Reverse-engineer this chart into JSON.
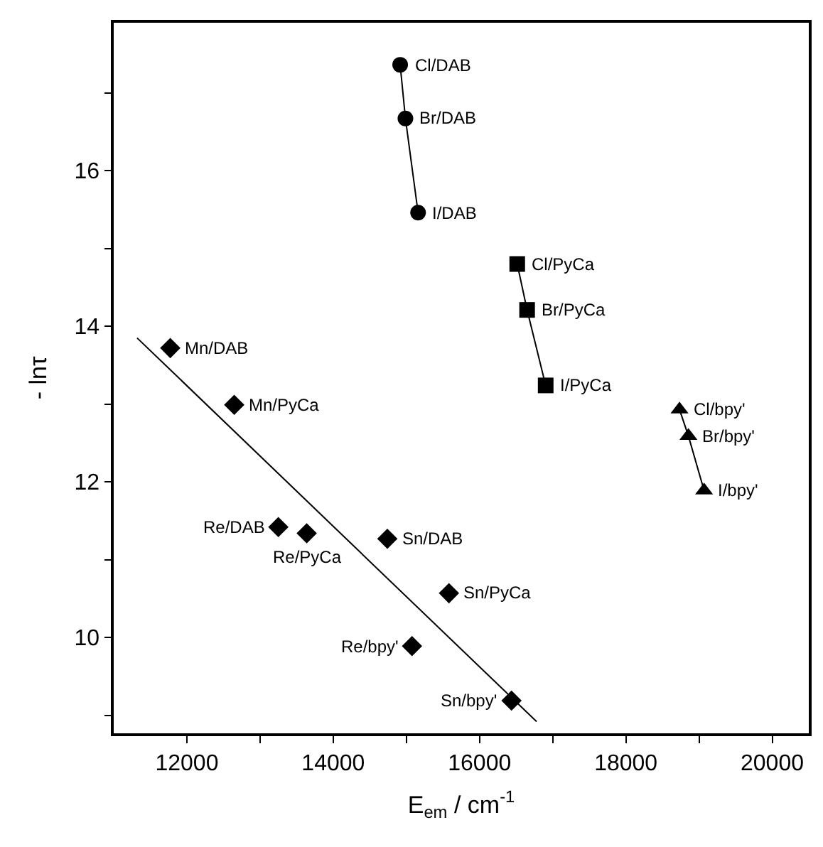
{
  "chart_data": {
    "type": "scatter",
    "xlabel": "E$_{em}$ / cm$^{-1}$",
    "ylabel": "- lnτ",
    "xlim": [
      11000,
      20500
    ],
    "ylim": [
      8.77,
      17.9
    ],
    "xticks": [
      12000,
      {
        "value": 13000,
        "label": null
      },
      14000,
      {
        "value": 15000,
        "label": null
      },
      16000,
      {
        "value": 17000,
        "label": null
      },
      18000,
      {
        "value": 19000,
        "label": null
      },
      20000
    ],
    "yticks": [
      {
        "value": 9,
        "label": null
      },
      10,
      {
        "value": 11,
        "label": null
      },
      12,
      {
        "value": 13,
        "label": null
      },
      14,
      {
        "value": 15,
        "label": null
      },
      16,
      {
        "value": 17,
        "label": null
      }
    ],
    "series": [
      {
        "type": "line",
        "marker": "circle",
        "color": "#000000",
        "x": [
          14915,
          14987,
          15160
        ],
        "values": [
          17.36,
          16.67,
          15.46
        ]
      },
      {
        "type": "line",
        "marker": "square",
        "color": "#000000",
        "x": [
          16515,
          16650,
          16904
        ],
        "values": [
          14.8,
          14.21,
          13.24
        ]
      },
      {
        "type": "line",
        "marker": "triangle",
        "color": "#000000",
        "x": [
          18733,
          18855,
          19069
        ],
        "values": [
          12.93,
          12.59,
          11.89
        ]
      },
      {
        "marker": "diamond",
        "color": "#000000",
        "x": [
          11773,
          12647,
          13250,
          13638,
          14740,
          15582,
          15077,
          16437
        ],
        "values": [
          13.72,
          12.99,
          11.42,
          11.34,
          11.27,
          10.57,
          9.89,
          9.19
        ]
      },
      {
        "type": "line",
        "marker": "none",
        "color": "#000000",
        "x": [
          11320,
          16780
        ],
        "values": [
          13.85,
          8.92
        ]
      }
    ],
    "annotations": [
      {
        "text": "Cl/DAB",
        "x": 14915,
        "y": 17.36
      },
      {
        "text": "Br/DAB",
        "x": 14987,
        "y": 16.67
      },
      {
        "text": "I/DAB",
        "x": 15160,
        "y": 15.46
      },
      {
        "text": "Cl/PyCa",
        "x": 16515,
        "y": 14.8
      },
      {
        "text": "Br/PyCa",
        "x": 16650,
        "y": 14.21
      },
      {
        "text": "I/PyCa",
        "x": 16904,
        "y": 13.24
      },
      {
        "text": "Cl/bpy'",
        "x": 18733,
        "y": 12.93
      },
      {
        "text": "Br/bpy'",
        "x": 18855,
        "y": 12.59
      },
      {
        "text": "I/bpy'",
        "x": 19069,
        "y": 11.89
      },
      {
        "text": "Mn/DAB",
        "x": 11773,
        "y": 13.72
      },
      {
        "text": "Mn/PyCa",
        "x": 12647,
        "y": 12.99
      },
      {
        "text": "Re/DAB",
        "x": 13250,
        "y": 11.42
      },
      {
        "text": "Re/PyCa",
        "x": 13638,
        "y": 11.34
      },
      {
        "text": "Sn/DAB",
        "x": 14740,
        "y": 11.27
      },
      {
        "text": "Sn/PyCa",
        "x": 15582,
        "y": 10.57
      },
      {
        "text": "Re/bpy'",
        "x": 15077,
        "y": 9.89
      },
      {
        "text": "Sn/bpy'",
        "x": 16437,
        "y": 9.19
      }
    ]
  }
}
